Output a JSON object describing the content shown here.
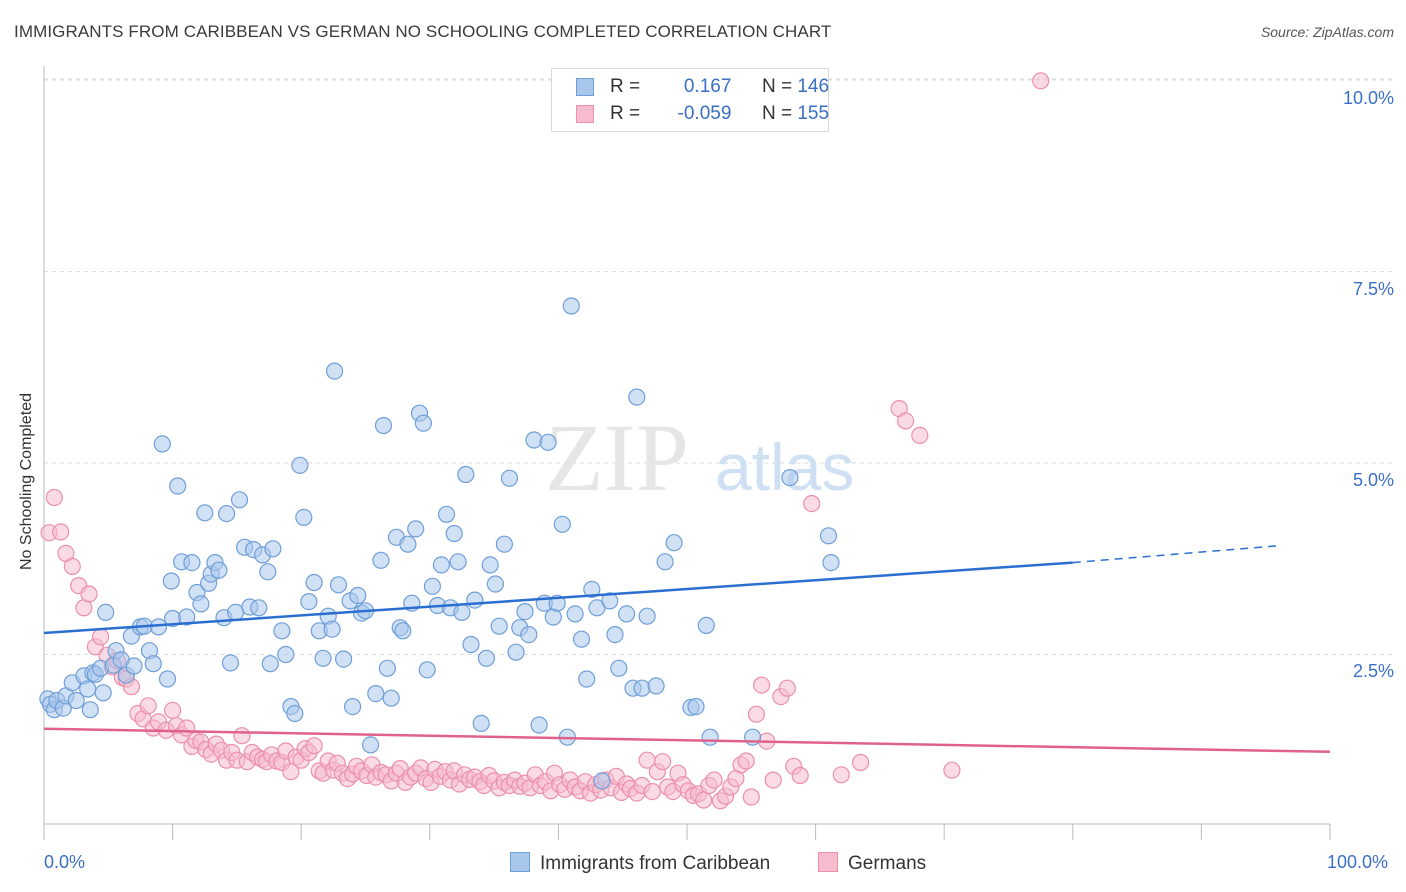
{
  "header": {
    "title": "IMMIGRANTS FROM CARIBBEAN VS GERMAN NO SCHOOLING COMPLETED CORRELATION CHART",
    "source": "Source: ZipAtlas.com"
  },
  "watermark": {
    "zip": "ZIP",
    "atlas": "atlas"
  },
  "legend": {
    "rows": [
      {
        "r_label": "R =",
        "r_value": "0.167",
        "n_label": "N =",
        "n_value": "146"
      },
      {
        "r_label": "R =",
        "r_value": "-0.059",
        "n_label": "N =",
        "n_value": "155"
      }
    ]
  },
  "bottom_legend": {
    "series1": "Immigrants from Caribbean",
    "series2": "Germans"
  },
  "colors": {
    "blue_fill": "#a9c7ec",
    "blue_stroke": "#6f9fd8",
    "blue_line": "#2a6fcf",
    "pink_fill": "#f6bccd",
    "pink_stroke": "#ec8fac",
    "pink_line": "#e0628c",
    "tick_text": "#3b6fc6",
    "grid": "#dddddd"
  },
  "chart_data": {
    "type": "scatter",
    "title": "IMMIGRANTS FROM CARIBBEAN VS GERMAN NO SCHOOLING COMPLETED CORRELATION CHART",
    "ylabel": "No Schooling Completed",
    "xlabel": "",
    "xlim": [
      0,
      100
    ],
    "ylim": [
      0,
      10.5
    ],
    "x_tick_labels": [
      "0.0%",
      "100.0%"
    ],
    "y_ticks": [
      2.5,
      5.0,
      7.5,
      10.0
    ],
    "y_tick_labels": [
      "2.5%",
      "5.0%",
      "7.5%",
      "10.0%"
    ],
    "grid": "horizontal dashed",
    "legend_position": "top-center",
    "series": [
      {
        "name": "Immigrants from Caribbean",
        "R": 0.167,
        "N": 146,
        "trend": {
          "x0": 0,
          "y0": 2.78,
          "x1": 80,
          "y1": 3.7,
          "dashed_to_x": 96,
          "dashed_to_y": 3.92
        },
        "points": [
          [
            0.3,
            1.92
          ],
          [
            0.5,
            1.85
          ],
          [
            0.8,
            1.78
          ],
          [
            1.0,
            1.9
          ],
          [
            1.5,
            1.8
          ],
          [
            1.7,
            1.96
          ],
          [
            2.2,
            2.13
          ],
          [
            2.5,
            1.9
          ],
          [
            3.1,
            2.22
          ],
          [
            3.4,
            2.05
          ],
          [
            3.6,
            1.78
          ],
          [
            3.8,
            2.26
          ],
          [
            4.0,
            2.24
          ],
          [
            4.4,
            2.32
          ],
          [
            4.6,
            2.0
          ],
          [
            4.8,
            3.05
          ],
          [
            5.4,
            2.36
          ],
          [
            5.6,
            2.55
          ],
          [
            6.0,
            2.43
          ],
          [
            6.4,
            2.23
          ],
          [
            6.8,
            2.74
          ],
          [
            7.0,
            2.35
          ],
          [
            7.5,
            2.86
          ],
          [
            7.8,
            2.87
          ],
          [
            8.2,
            2.55
          ],
          [
            8.5,
            2.38
          ],
          [
            8.9,
            2.86
          ],
          [
            9.2,
            5.25
          ],
          [
            9.6,
            2.18
          ],
          [
            9.9,
            3.46
          ],
          [
            10.0,
            2.97
          ],
          [
            10.4,
            4.7
          ],
          [
            10.7,
            3.71
          ],
          [
            11.1,
            2.99
          ],
          [
            11.5,
            3.7
          ],
          [
            11.9,
            3.31
          ],
          [
            12.2,
            3.16
          ],
          [
            12.5,
            4.35
          ],
          [
            12.8,
            3.43
          ],
          [
            13.0,
            3.55
          ],
          [
            13.3,
            3.7
          ],
          [
            13.6,
            3.6
          ],
          [
            14.0,
            2.98
          ],
          [
            14.2,
            4.34
          ],
          [
            14.5,
            2.39
          ],
          [
            14.9,
            3.05
          ],
          [
            15.2,
            4.52
          ],
          [
            15.6,
            3.9
          ],
          [
            16.0,
            3.12
          ],
          [
            16.3,
            3.87
          ],
          [
            16.7,
            3.11
          ],
          [
            17.0,
            3.8
          ],
          [
            17.4,
            3.58
          ],
          [
            17.6,
            2.38
          ],
          [
            17.8,
            3.88
          ],
          [
            18.5,
            2.81
          ],
          [
            18.8,
            2.5
          ],
          [
            19.2,
            1.82
          ],
          [
            19.5,
            1.73
          ],
          [
            19.9,
            4.97
          ],
          [
            20.2,
            4.29
          ],
          [
            20.6,
            3.19
          ],
          [
            21.0,
            3.44
          ],
          [
            21.4,
            2.81
          ],
          [
            21.7,
            2.45
          ],
          [
            22.1,
            3.0
          ],
          [
            22.4,
            2.83
          ],
          [
            22.6,
            6.2
          ],
          [
            22.9,
            3.41
          ],
          [
            23.3,
            2.44
          ],
          [
            23.8,
            3.2
          ],
          [
            24.0,
            1.82
          ],
          [
            24.4,
            3.27
          ],
          [
            24.7,
            3.04
          ],
          [
            25.0,
            3.07
          ],
          [
            25.4,
            1.32
          ],
          [
            25.8,
            1.99
          ],
          [
            26.2,
            3.73
          ],
          [
            26.4,
            5.49
          ],
          [
            26.7,
            2.32
          ],
          [
            27.0,
            1.93
          ],
          [
            27.4,
            4.03
          ],
          [
            27.7,
            2.85
          ],
          [
            27.9,
            2.81
          ],
          [
            28.3,
            3.94
          ],
          [
            28.6,
            3.17
          ],
          [
            28.9,
            4.14
          ],
          [
            29.2,
            5.65
          ],
          [
            29.5,
            5.52
          ],
          [
            29.8,
            2.3
          ],
          [
            30.2,
            3.39
          ],
          [
            30.6,
            3.14
          ],
          [
            30.9,
            3.67
          ],
          [
            31.3,
            4.33
          ],
          [
            31.6,
            3.11
          ],
          [
            31.9,
            4.08
          ],
          [
            32.2,
            3.71
          ],
          [
            32.5,
            3.05
          ],
          [
            32.8,
            4.85
          ],
          [
            33.2,
            2.63
          ],
          [
            33.5,
            3.21
          ],
          [
            34.0,
            1.6
          ],
          [
            34.4,
            2.45
          ],
          [
            34.7,
            3.67
          ],
          [
            35.1,
            3.42
          ],
          [
            35.4,
            2.87
          ],
          [
            35.8,
            3.94
          ],
          [
            36.2,
            4.8
          ],
          [
            36.7,
            2.53
          ],
          [
            37.0,
            2.85
          ],
          [
            37.4,
            3.06
          ],
          [
            37.7,
            2.76
          ],
          [
            38.1,
            5.3
          ],
          [
            38.5,
            1.58
          ],
          [
            38.9,
            3.17
          ],
          [
            39.2,
            5.27
          ],
          [
            39.6,
            2.99
          ],
          [
            39.9,
            3.17
          ],
          [
            40.3,
            4.2
          ],
          [
            40.7,
            1.42
          ],
          [
            41.0,
            7.05
          ],
          [
            41.3,
            3.03
          ],
          [
            41.8,
            2.7
          ],
          [
            42.2,
            2.18
          ],
          [
            42.6,
            3.35
          ],
          [
            43.0,
            3.11
          ],
          [
            43.4,
            0.85
          ],
          [
            44.0,
            3.2
          ],
          [
            44.4,
            2.76
          ],
          [
            44.7,
            2.32
          ],
          [
            45.3,
            3.03
          ],
          [
            45.8,
            2.06
          ],
          [
            46.1,
            5.86
          ],
          [
            46.5,
            2.06
          ],
          [
            46.9,
            3.0
          ],
          [
            47.6,
            2.09
          ],
          [
            48.3,
            3.71
          ],
          [
            49.0,
            3.96
          ],
          [
            50.3,
            1.81
          ],
          [
            50.7,
            1.82
          ],
          [
            51.5,
            2.88
          ],
          [
            51.8,
            1.42
          ],
          [
            55.1,
            1.42
          ],
          [
            58.0,
            4.81
          ],
          [
            61.0,
            4.05
          ],
          [
            61.2,
            3.7
          ]
        ]
      },
      {
        "name": "Germans",
        "R": -0.059,
        "N": 155,
        "trend": {
          "x0": 0,
          "y0": 1.53,
          "x1": 100,
          "y1": 1.23
        },
        "points": [
          [
            0.4,
            4.09
          ],
          [
            0.8,
            4.55
          ],
          [
            1.3,
            4.1
          ],
          [
            1.7,
            3.82
          ],
          [
            2.2,
            3.65
          ],
          [
            2.7,
            3.4
          ],
          [
            3.1,
            3.11
          ],
          [
            3.5,
            3.29
          ],
          [
            4.0,
            2.6
          ],
          [
            4.4,
            2.73
          ],
          [
            4.9,
            2.49
          ],
          [
            5.3,
            2.34
          ],
          [
            5.7,
            2.42
          ],
          [
            6.1,
            2.2
          ],
          [
            6.4,
            2.18
          ],
          [
            6.8,
            2.08
          ],
          [
            7.3,
            1.73
          ],
          [
            7.7,
            1.66
          ],
          [
            8.1,
            1.83
          ],
          [
            8.5,
            1.54
          ],
          [
            8.9,
            1.62
          ],
          [
            9.5,
            1.51
          ],
          [
            10.0,
            1.77
          ],
          [
            10.3,
            1.57
          ],
          [
            10.7,
            1.45
          ],
          [
            11.1,
            1.54
          ],
          [
            11.5,
            1.3
          ],
          [
            11.8,
            1.38
          ],
          [
            12.2,
            1.36
          ],
          [
            12.6,
            1.26
          ],
          [
            13.0,
            1.2
          ],
          [
            13.4,
            1.33
          ],
          [
            13.8,
            1.25
          ],
          [
            14.2,
            1.12
          ],
          [
            14.6,
            1.22
          ],
          [
            15.0,
            1.12
          ],
          [
            15.4,
            1.44
          ],
          [
            15.8,
            1.1
          ],
          [
            16.2,
            1.22
          ],
          [
            16.6,
            1.16
          ],
          [
            17.0,
            1.13
          ],
          [
            17.3,
            1.1
          ],
          [
            17.7,
            1.19
          ],
          [
            18.1,
            1.11
          ],
          [
            18.5,
            1.09
          ],
          [
            18.8,
            1.24
          ],
          [
            19.2,
            0.97
          ],
          [
            19.6,
            1.16
          ],
          [
            20.0,
            1.12
          ],
          [
            20.3,
            1.27
          ],
          [
            20.6,
            1.22
          ],
          [
            21.0,
            1.31
          ],
          [
            21.4,
            0.98
          ],
          [
            21.7,
            0.95
          ],
          [
            22.1,
            1.11
          ],
          [
            22.5,
            0.99
          ],
          [
            22.8,
            1.08
          ],
          [
            23.2,
            0.95
          ],
          [
            23.6,
            0.88
          ],
          [
            24.0,
            0.94
          ],
          [
            24.3,
            1.04
          ],
          [
            24.7,
            0.98
          ],
          [
            25.1,
            0.92
          ],
          [
            25.5,
            1.06
          ],
          [
            25.8,
            0.9
          ],
          [
            26.2,
            0.96
          ],
          [
            26.6,
            0.93
          ],
          [
            27.0,
            0.85
          ],
          [
            27.4,
            0.95
          ],
          [
            27.7,
            1.01
          ],
          [
            28.1,
            0.83
          ],
          [
            28.5,
            0.9
          ],
          [
            28.9,
            0.95
          ],
          [
            29.3,
            1.02
          ],
          [
            29.7,
            0.88
          ],
          [
            30.1,
            0.83
          ],
          [
            30.4,
            1.0
          ],
          [
            30.8,
            0.91
          ],
          [
            31.2,
            0.97
          ],
          [
            31.6,
            0.86
          ],
          [
            31.9,
            0.98
          ],
          [
            32.3,
            0.81
          ],
          [
            32.7,
            0.93
          ],
          [
            33.1,
            0.87
          ],
          [
            33.5,
            0.9
          ],
          [
            33.9,
            0.84
          ],
          [
            34.2,
            0.79
          ],
          [
            34.6,
            0.92
          ],
          [
            35.0,
            0.85
          ],
          [
            35.4,
            0.76
          ],
          [
            35.8,
            0.83
          ],
          [
            36.2,
            0.79
          ],
          [
            36.6,
            0.86
          ],
          [
            37.0,
            0.78
          ],
          [
            37.4,
            0.82
          ],
          [
            37.8,
            0.76
          ],
          [
            38.2,
            0.93
          ],
          [
            38.6,
            0.79
          ],
          [
            39.0,
            0.84
          ],
          [
            39.4,
            0.72
          ],
          [
            39.7,
            0.95
          ],
          [
            40.1,
            0.8
          ],
          [
            40.5,
            0.74
          ],
          [
            40.9,
            0.86
          ],
          [
            41.3,
            0.77
          ],
          [
            41.7,
            0.72
          ],
          [
            42.1,
            0.84
          ],
          [
            42.5,
            0.69
          ],
          [
            42.9,
            0.8
          ],
          [
            43.3,
            0.73
          ],
          [
            43.7,
            0.86
          ],
          [
            44.1,
            0.76
          ],
          [
            44.5,
            0.91
          ],
          [
            44.9,
            0.7
          ],
          [
            45.3,
            0.81
          ],
          [
            45.6,
            0.75
          ],
          [
            46.1,
            0.69
          ],
          [
            46.5,
            0.79
          ],
          [
            46.9,
            1.12
          ],
          [
            47.3,
            0.71
          ],
          [
            47.7,
            0.97
          ],
          [
            48.1,
            1.1
          ],
          [
            48.5,
            0.77
          ],
          [
            48.9,
            0.71
          ],
          [
            49.3,
            0.95
          ],
          [
            49.7,
            0.8
          ],
          [
            50.1,
            0.72
          ],
          [
            50.5,
            0.66
          ],
          [
            50.9,
            0.68
          ],
          [
            51.3,
            0.6
          ],
          [
            51.7,
            0.79
          ],
          [
            52.1,
            0.86
          ],
          [
            52.6,
            0.59
          ],
          [
            53.0,
            0.65
          ],
          [
            53.4,
            0.77
          ],
          [
            53.8,
            0.88
          ],
          [
            54.2,
            1.06
          ],
          [
            54.6,
            1.11
          ],
          [
            55.0,
            0.64
          ],
          [
            55.4,
            1.72
          ],
          [
            55.8,
            2.1
          ],
          [
            56.2,
            1.37
          ],
          [
            56.7,
            0.86
          ],
          [
            57.3,
            1.95
          ],
          [
            57.8,
            2.06
          ],
          [
            58.3,
            1.04
          ],
          [
            58.8,
            0.92
          ],
          [
            59.7,
            4.47
          ],
          [
            62.0,
            0.93
          ],
          [
            63.5,
            1.09
          ],
          [
            66.5,
            5.71
          ],
          [
            67.0,
            5.55
          ],
          [
            68.1,
            5.36
          ],
          [
            70.6,
            0.99
          ],
          [
            77.5,
            9.99
          ]
        ]
      }
    ]
  }
}
